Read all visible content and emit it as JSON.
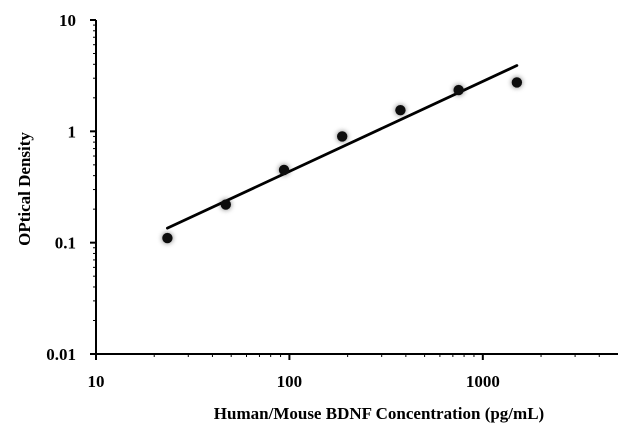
{
  "chart_data": {
    "type": "scatter",
    "title": "",
    "xlabel": "Human/Mouse BDNF Concentration (pg/mL)",
    "ylabel": "OPtical Density",
    "x_scale": "log",
    "y_scale": "log",
    "xlim": [
      10,
      5000
    ],
    "ylim": [
      0.01,
      10
    ],
    "x_ticks": [
      10,
      100,
      1000
    ],
    "x_tick_labels": [
      "10",
      "100",
      "1000"
    ],
    "y_ticks": [
      0.01,
      0.1,
      1,
      10
    ],
    "y_tick_labels": [
      "0.01",
      "0.1",
      "1",
      "10"
    ],
    "grid": false,
    "legend": "none",
    "series": [
      {
        "points": [
          {
            "x": 23.4,
            "y": 0.11
          },
          {
            "x": 46.9,
            "y": 0.22
          },
          {
            "x": 93.8,
            "y": 0.45
          },
          {
            "x": 187.5,
            "y": 0.9
          },
          {
            "x": 375,
            "y": 1.55
          },
          {
            "x": 750,
            "y": 2.35
          },
          {
            "x": 1500,
            "y": 2.75
          }
        ],
        "marker_color": "#111111"
      }
    ],
    "fit_line": {
      "type": "power",
      "x_range": [
        23.4,
        1500
      ],
      "y_range": [
        0.135,
        3.9
      ],
      "color": "#000000"
    }
  }
}
